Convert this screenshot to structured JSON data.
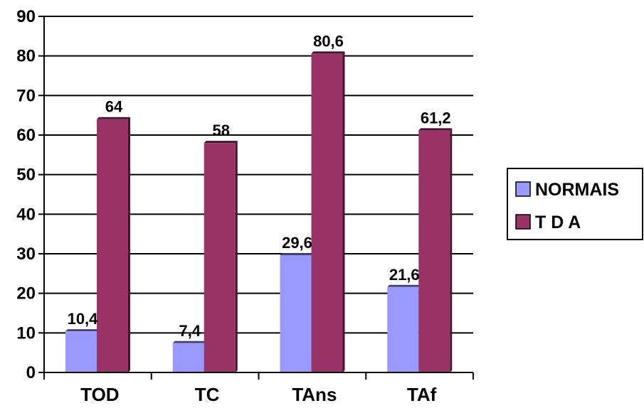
{
  "chart_data": {
    "type": "bar",
    "title": "",
    "xlabel": "",
    "ylabel": "",
    "categories": [
      "TOD",
      "TC",
      "TAns",
      "TAf"
    ],
    "series": [
      {
        "name": "NORMAIS",
        "color": "#9999ff",
        "values": [
          10.4,
          7.4,
          29.6,
          21.6
        ],
        "labels": [
          "10,4",
          "7,4",
          "29,6",
          "21,6"
        ]
      },
      {
        "name": "T D A",
        "color": "#993366",
        "values": [
          64,
          58,
          80.6,
          61.2
        ],
        "labels": [
          "64",
          "58",
          "80,6",
          "61,2"
        ]
      }
    ],
    "ylim": [
      0,
      90
    ],
    "yticks": [
      "0",
      "10",
      "20",
      "30",
      "40",
      "50",
      "60",
      "70",
      "80",
      "90"
    ],
    "grid": true,
    "legend_position": "right"
  }
}
